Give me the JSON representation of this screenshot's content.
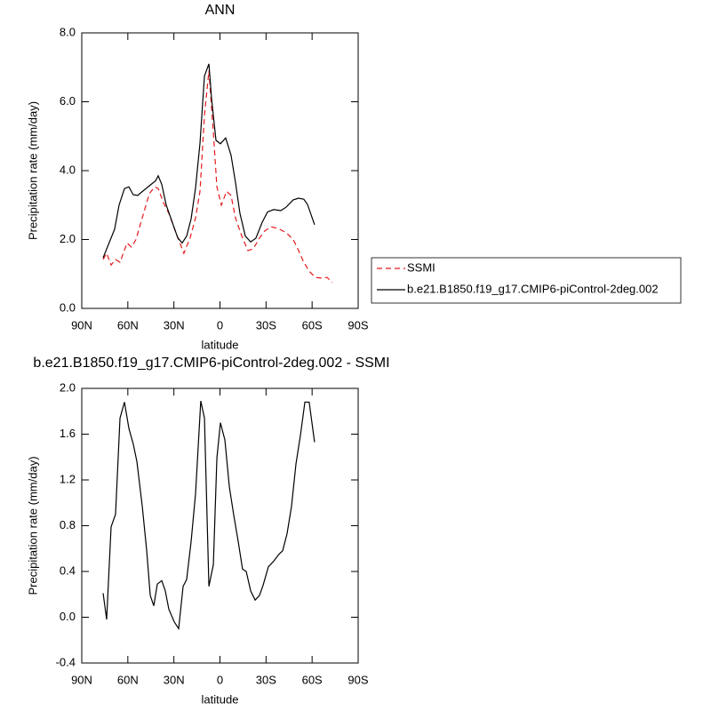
{
  "chart_data": [
    {
      "type": "line",
      "title": "ANN",
      "xlabel": "latitude",
      "ylabel": "Precipitation rate (mm/day)",
      "xlim": [
        90,
        -90
      ],
      "xticks": [
        {
          "value": 90,
          "label": "90N"
        },
        {
          "value": 60,
          "label": "60N"
        },
        {
          "value": 30,
          "label": "30N"
        },
        0,
        {
          "value": -30,
          "label": "30S"
        },
        {
          "value": -60,
          "label": "60S"
        },
        {
          "value": -90,
          "label": "90S"
        }
      ],
      "ylim": [
        0,
        8
      ],
      "yticks": [
        {
          "value": 0,
          "label": "0.0"
        },
        {
          "value": 2,
          "label": "2.0"
        },
        {
          "value": 4,
          "label": "4.0"
        },
        {
          "value": 6,
          "label": "6.0"
        },
        {
          "value": 8,
          "label": "8.0"
        }
      ],
      "legend": "right",
      "series": [
        {
          "name": "SSMI",
          "color": "#e41a1c",
          "dashed": true,
          "x": [
            76.1,
            73.8,
            70.9,
            68,
            65.1,
            60.5,
            57.6,
            54.7,
            50.6,
            46,
            42.5,
            40.2,
            36.8,
            33.3,
            28.7,
            23.5,
            19.5,
            15.9,
            13,
            10.1,
            7.2,
            4.3,
            2,
            -0.9,
            -4.3,
            -7.2,
            -10.1,
            -14.2,
            -18.2,
            -21.7,
            -25.7,
            -29.2,
            -33.3,
            -37.9,
            -43.1,
            -47.7,
            -51.2,
            -54.6,
            -58.1,
            -62.2,
            -66.3,
            -69.7,
            -73.2
          ],
          "values": [
            1.42,
            1.6,
            1.26,
            1.42,
            1.34,
            1.9,
            1.78,
            2.0,
            2.63,
            3.33,
            3.53,
            3.48,
            3.07,
            2.76,
            2.2,
            1.6,
            2.04,
            2.63,
            3.4,
            5.6,
            6.9,
            5.1,
            3.53,
            3.0,
            3.4,
            3.28,
            2.63,
            2.1,
            1.68,
            1.73,
            2.04,
            2.25,
            2.37,
            2.32,
            2.2,
            2.0,
            1.68,
            1.34,
            1.08,
            0.9,
            0.88,
            0.9,
            0.75
          ]
        },
        {
          "name": "b.e21.B1850.f19_g17.CMIP6-piControl-2deg.002",
          "color": "#000000",
          "dashed": false,
          "x": [
            76.1,
            68.6,
            65.7,
            62.2,
            59.3,
            56.5,
            53.6,
            44.9,
            42,
            40.2,
            37.9,
            35,
            27.5,
            24.6,
            21.7,
            18.8,
            15.9,
            13,
            10.1,
            7.2,
            5.5,
            2.6,
            -0.3,
            -3.7,
            -7.2,
            -10.1,
            -13,
            -16.5,
            -20,
            -23.4,
            -27.5,
            -31,
            -35,
            -39.6,
            -43.1,
            -47.7,
            -51.2,
            -54.6,
            -57,
            -61.6
          ],
          "values": [
            1.47,
            2.3,
            3.0,
            3.48,
            3.53,
            3.3,
            3.28,
            3.6,
            3.7,
            3.85,
            3.6,
            3.0,
            2.05,
            1.9,
            2.1,
            2.6,
            3.5,
            4.8,
            6.75,
            7.1,
            6.1,
            4.88,
            4.78,
            4.95,
            4.45,
            3.66,
            2.76,
            2.1,
            1.93,
            2.04,
            2.5,
            2.8,
            2.87,
            2.84,
            2.94,
            3.15,
            3.2,
            3.17,
            3.02,
            2.43
          ]
        }
      ]
    },
    {
      "type": "line",
      "title": "b.e21.B1850.f19_g17.CMIP6-piControl-2deg.002 - SSMI",
      "xlabel": "latitude",
      "ylabel": "Precipitation rate (mm/day)",
      "xlim": [
        90,
        -90
      ],
      "xticks": [
        {
          "value": 90,
          "label": "90N"
        },
        {
          "value": 60,
          "label": "60N"
        },
        {
          "value": 30,
          "label": "30N"
        },
        0,
        {
          "value": -30,
          "label": "30S"
        },
        {
          "value": -60,
          "label": "60S"
        },
        {
          "value": -90,
          "label": "90S"
        }
      ],
      "ylim": [
        -0.4,
        2.0
      ],
      "yticks": [
        {
          "value": -0.4,
          "label": "-0.4"
        },
        {
          "value": 0,
          "label": "0.0"
        },
        {
          "value": 0.4,
          "label": "0.4"
        },
        {
          "value": 0.8,
          "label": "0.8"
        },
        {
          "value": 1.2,
          "label": "1.2"
        },
        {
          "value": 1.6,
          "label": "1.6"
        },
        {
          "value": 2.0,
          "label": "2.0"
        }
      ],
      "color": "#000000",
      "x": [
        76.1,
        73.8,
        70.9,
        68,
        65.1,
        62.2,
        59.3,
        56.4,
        54.1,
        50.6,
        47.7,
        45.4,
        43.1,
        40.8,
        37.9,
        35.6,
        33.3,
        29.8,
        26.9,
        24,
        21.7,
        18.8,
        15.9,
        12.5,
        10.1,
        7.2,
        4.3,
        2,
        -0.3,
        -3.2,
        -6.1,
        -9,
        -11.9,
        -14.7,
        -17.1,
        -20,
        -22.9,
        -25.7,
        -28.1,
        -31.5,
        -35,
        -38.4,
        -40.8,
        -43.7,
        -46.6,
        -49.5,
        -52.4,
        -55.3,
        -58.1,
        -61.6
      ],
      "values": [
        0.21,
        -0.02,
        0.79,
        0.9,
        1.74,
        1.88,
        1.65,
        1.51,
        1.36,
        0.97,
        0.58,
        0.19,
        0.1,
        0.29,
        0.32,
        0.23,
        0.07,
        -0.04,
        -0.1,
        0.27,
        0.33,
        0.66,
        1.08,
        1.89,
        1.74,
        0.27,
        0.46,
        1.39,
        1.7,
        1.55,
        1.14,
        0.89,
        0.66,
        0.42,
        0.4,
        0.23,
        0.15,
        0.19,
        0.28,
        0.44,
        0.49,
        0.55,
        0.58,
        0.73,
        0.97,
        1.34,
        1.59,
        1.88,
        1.88,
        1.53
      ]
    }
  ]
}
